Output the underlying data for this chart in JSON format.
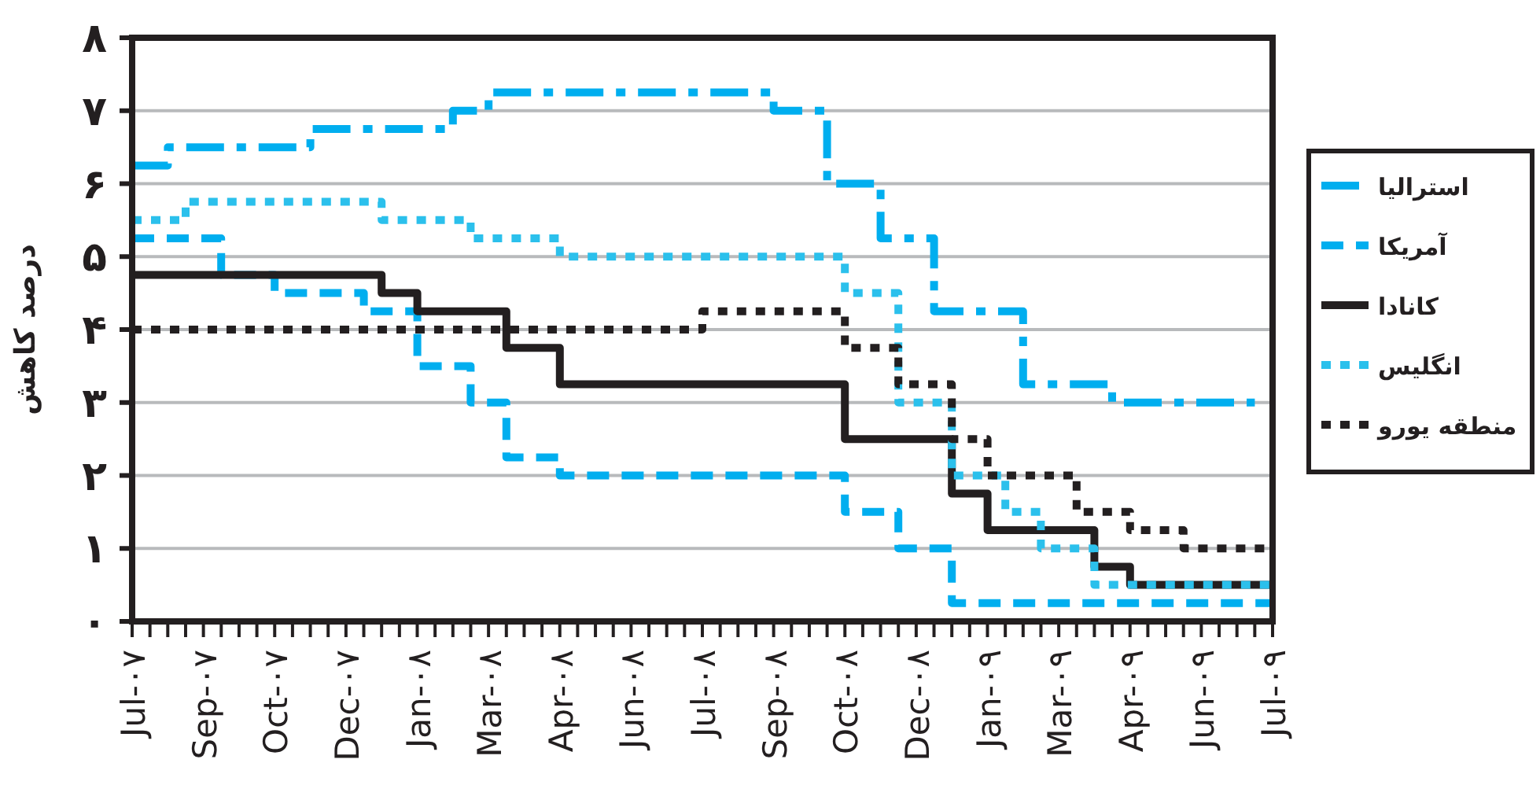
{
  "chart_data": {
    "type": "step",
    "ylabel": "درصد کاهش",
    "ylim": [
      0,
      8
    ],
    "yticks": [
      {
        "value": 0,
        "label": "۰"
      },
      {
        "value": 1,
        "label": "۱"
      },
      {
        "value": 2,
        "label": "۲"
      },
      {
        "value": 3,
        "label": "۳"
      },
      {
        "value": 4,
        "label": "۴"
      },
      {
        "value": 5,
        "label": "۵"
      },
      {
        "value": 6,
        "label": "۶"
      },
      {
        "value": 7,
        "label": "۷"
      },
      {
        "value": 8,
        "label": "۸"
      }
    ],
    "categories": [
      "Jul-۰۷",
      null,
      null,
      null,
      "Sep-۰۷",
      null,
      null,
      null,
      "Oct-۰۷",
      null,
      null,
      null,
      "Dec-۰۷",
      null,
      null,
      null,
      "Jan-۰۸",
      null,
      null,
      null,
      "Mar-۰۸",
      null,
      null,
      null,
      "Apr-۰۸",
      null,
      null,
      null,
      "Jun-۰۸",
      null,
      null,
      null,
      "Jul-۰۸",
      null,
      null,
      null,
      "Sep-۰۸",
      null,
      null,
      null,
      "Oct-۰۸",
      null,
      null,
      null,
      "Dec-۰۸",
      null,
      null,
      null,
      "Jan-۰۹",
      null,
      null,
      null,
      "Mar-۰۹",
      null,
      null,
      null,
      "Apr-۰۹",
      null,
      null,
      null,
      "Jun-۰۹",
      null,
      null,
      null,
      "Jul-۰۹"
    ],
    "grid": "y",
    "legend": "right",
    "marker": "none",
    "series": [
      {
        "name": "استرالیا",
        "color": "#00aeef",
        "line_style": "dashdot",
        "values": [
          6.25,
          6.25,
          6.5,
          6.5,
          6.5,
          6.5,
          6.5,
          6.5,
          6.5,
          6.5,
          6.75,
          6.75,
          6.75,
          6.75,
          6.75,
          6.75,
          6.75,
          6.75,
          7,
          7,
          7.25,
          7.25,
          7.25,
          7.25,
          7.25,
          7.25,
          7.25,
          7.25,
          7.25,
          7.25,
          7.25,
          7.25,
          7.25,
          7.25,
          7.25,
          7.25,
          7,
          7,
          7,
          6,
          6,
          6,
          5.25,
          5.25,
          5.25,
          4.25,
          4.25,
          4.25,
          4.25,
          4.25,
          3.25,
          3.25,
          3.25,
          3.25,
          3.25,
          3,
          3,
          3,
          3,
          3,
          3,
          3,
          3,
          3,
          null
        ]
      },
      {
        "name": "آمریکا",
        "color": "#00aeef",
        "line_style": "dashed",
        "values": [
          5.25,
          5.25,
          5.25,
          5.25,
          5.25,
          4.75,
          4.75,
          4.75,
          4.5,
          4.5,
          4.5,
          4.5,
          4.5,
          4.25,
          4.25,
          4.25,
          3.5,
          3.5,
          3.5,
          3,
          3,
          2.25,
          2.25,
          2.25,
          2,
          2,
          2,
          2,
          2,
          2,
          2,
          2,
          2,
          2,
          2,
          2,
          2,
          2,
          2,
          2,
          1.5,
          1.5,
          1.5,
          1,
          1,
          1,
          0.25,
          0.25,
          0.25,
          0.25,
          0.25,
          0.25,
          0.25,
          0.25,
          0.25,
          0.25,
          0.25,
          0.25,
          0.25,
          0.25,
          0.25,
          0.25,
          0.25,
          0.25,
          0.25
        ]
      },
      {
        "name": "کانادا",
        "color": "#231f20",
        "line_style": "solid",
        "values": [
          4.75,
          4.75,
          4.75,
          4.75,
          4.75,
          4.75,
          4.75,
          4.75,
          4.75,
          4.75,
          4.75,
          4.75,
          4.75,
          4.75,
          4.5,
          4.5,
          4.25,
          4.25,
          4.25,
          4.25,
          4.25,
          3.75,
          3.75,
          3.75,
          3.25,
          3.25,
          3.25,
          3.25,
          3.25,
          3.25,
          3.25,
          3.25,
          3.25,
          3.25,
          3.25,
          3.25,
          3.25,
          3.25,
          3.25,
          3.25,
          2.5,
          2.5,
          2.5,
          2.5,
          2.5,
          2.5,
          1.75,
          1.75,
          1.25,
          1.25,
          1.25,
          1.25,
          1.25,
          1.25,
          0.75,
          0.75,
          0.5,
          0.5,
          0.5,
          0.5,
          0.5,
          0.5,
          0.5,
          0.5,
          0.5
        ]
      },
      {
        "name": "انگلیس",
        "color": "#2bc0ec",
        "line_style": "dotted",
        "values": [
          5.5,
          5.5,
          5.5,
          5.75,
          5.75,
          5.75,
          5.75,
          5.75,
          5.75,
          5.75,
          5.75,
          5.75,
          5.75,
          5.75,
          5.5,
          5.5,
          5.5,
          5.5,
          5.5,
          5.25,
          5.25,
          5.25,
          5.25,
          5.25,
          5,
          5,
          5,
          5,
          5,
          5,
          5,
          5,
          5,
          5,
          5,
          5,
          5,
          5,
          5,
          5,
          4.5,
          4.5,
          4.5,
          3,
          3,
          3,
          2,
          2,
          2,
          1.5,
          1.5,
          1,
          1,
          1,
          0.5,
          0.5,
          0.5,
          0.5,
          0.5,
          0.5,
          0.5,
          0.5,
          0.5,
          0.5,
          0.5
        ]
      },
      {
        "name": "منطقه یورو",
        "color": "#231f20",
        "line_style": "dotted",
        "values": [
          4,
          4,
          4,
          4,
          4,
          4,
          4,
          4,
          4,
          4,
          4,
          4,
          4,
          4,
          4,
          4,
          4,
          4,
          4,
          4,
          4,
          4,
          4,
          4,
          4,
          4,
          4,
          4,
          4,
          4,
          4,
          4,
          4.25,
          4.25,
          4.25,
          4.25,
          4.25,
          4.25,
          4.25,
          4.25,
          3.75,
          3.75,
          3.75,
          3.25,
          3.25,
          3.25,
          2.5,
          2.5,
          2,
          2,
          2,
          2,
          2,
          1.5,
          1.5,
          1.5,
          1.25,
          1.25,
          1.25,
          1,
          1,
          1,
          1,
          1,
          1
        ]
      }
    ]
  }
}
